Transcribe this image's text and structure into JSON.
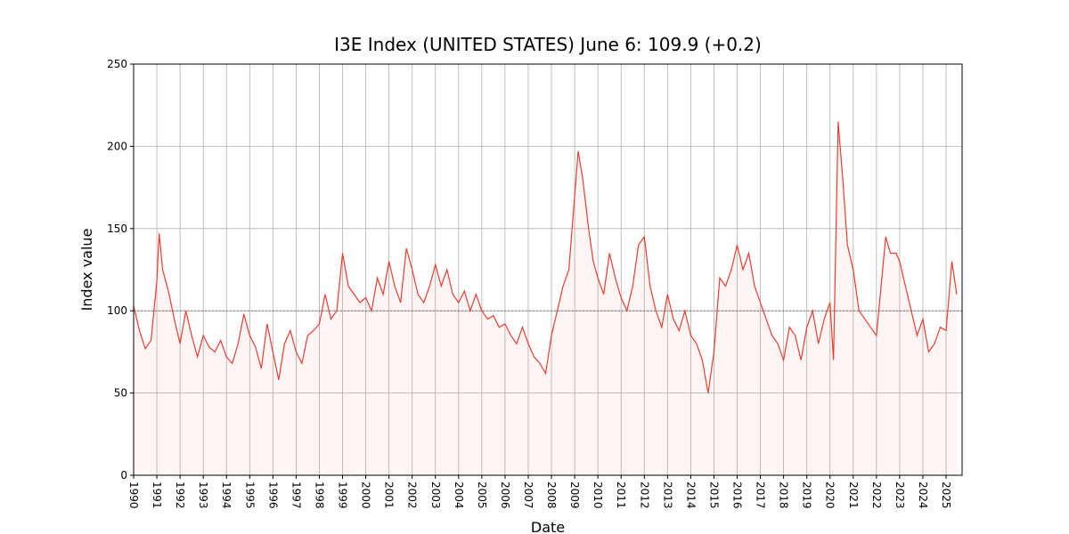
{
  "chart_data": {
    "type": "line",
    "title": "I3E Index (UNITED STATES) June 6: 109.9 (+0.2)",
    "x_label": "Date",
    "y_label": "Index value",
    "xlim": [
      1990,
      2025.69
    ],
    "ylim": [
      0,
      250
    ],
    "xticks": [
      1990,
      1991,
      1992,
      1993,
      1994,
      1995,
      1996,
      1997,
      1998,
      1999,
      2000,
      2001,
      2002,
      2003,
      2004,
      2005,
      2006,
      2007,
      2008,
      2009,
      2010,
      2011,
      2012,
      2013,
      2014,
      2015,
      2016,
      2017,
      2018,
      2019,
      2020,
      2021,
      2022,
      2023,
      2024,
      2025
    ],
    "yticks": [
      0,
      50,
      100,
      150,
      200,
      250
    ],
    "grid": true,
    "reference_line": 100,
    "series": [
      {
        "color": "#f03c2e",
        "x": [
          1990.0,
          1990.25,
          1990.5,
          1990.75,
          1991.0,
          1991.1,
          1991.25,
          1991.5,
          1991.75,
          1992.0,
          1992.25,
          1992.5,
          1992.75,
          1993.0,
          1993.25,
          1993.5,
          1993.75,
          1994.0,
          1994.25,
          1994.5,
          1994.75,
          1995.0,
          1995.25,
          1995.5,
          1995.75,
          1996.0,
          1996.25,
          1996.5,
          1996.75,
          1997.0,
          1997.25,
          1997.5,
          1997.75,
          1998.0,
          1998.25,
          1998.5,
          1998.75,
          1999.0,
          1999.25,
          1999.5,
          1999.75,
          2000.0,
          2000.25,
          2000.5,
          2000.75,
          2001.0,
          2001.25,
          2001.5,
          2001.75,
          2002.0,
          2002.25,
          2002.5,
          2002.75,
          2003.0,
          2003.25,
          2003.5,
          2003.75,
          2004.0,
          2004.25,
          2004.5,
          2004.75,
          2005.0,
          2005.25,
          2005.5,
          2005.75,
          2006.0,
          2006.25,
          2006.5,
          2006.75,
          2007.0,
          2007.25,
          2007.5,
          2007.75,
          2008.0,
          2008.25,
          2008.5,
          2008.75,
          2009.0,
          2009.15,
          2009.35,
          2009.6,
          2009.8,
          2010.0,
          2010.25,
          2010.5,
          2010.75,
          2011.0,
          2011.25,
          2011.5,
          2011.75,
          2012.0,
          2012.25,
          2012.5,
          2012.75,
          2013.0,
          2013.25,
          2013.5,
          2013.75,
          2014.0,
          2014.25,
          2014.5,
          2014.75,
          2015.0,
          2015.25,
          2015.5,
          2015.75,
          2016.0,
          2016.25,
          2016.5,
          2016.75,
          2017.0,
          2017.25,
          2017.5,
          2017.75,
          2018.0,
          2018.25,
          2018.5,
          2018.75,
          2019.0,
          2019.25,
          2019.5,
          2019.75,
          2020.0,
          2020.15,
          2020.35,
          2020.55,
          2020.75,
          2021.0,
          2021.25,
          2021.5,
          2021.75,
          2022.0,
          2022.2,
          2022.4,
          2022.6,
          2022.85,
          2023.0,
          2023.25,
          2023.5,
          2023.75,
          2024.0,
          2024.25,
          2024.5,
          2024.75,
          2025.0,
          2025.25,
          2025.46
        ],
        "values": [
          103,
          88,
          77,
          82,
          118,
          147,
          125,
          112,
          95,
          80,
          100,
          85,
          72,
          85,
          78,
          75,
          82,
          72,
          68,
          80,
          98,
          85,
          78,
          65,
          92,
          75,
          58,
          80,
          88,
          75,
          68,
          85,
          88,
          92,
          110,
          95,
          100,
          135,
          115,
          110,
          105,
          108,
          100,
          120,
          110,
          130,
          115,
          105,
          138,
          125,
          110,
          105,
          115,
          128,
          115,
          125,
          110,
          105,
          112,
          100,
          110,
          100,
          95,
          97,
          90,
          92,
          85,
          80,
          90,
          80,
          72,
          68,
          62,
          85,
          100,
          115,
          125,
          170,
          197,
          180,
          150,
          130,
          120,
          110,
          135,
          120,
          108,
          100,
          115,
          140,
          145,
          115,
          100,
          90,
          110,
          95,
          88,
          100,
          85,
          80,
          70,
          50,
          75,
          120,
          115,
          125,
          140,
          125,
          135,
          115,
          105,
          95,
          85,
          80,
          70,
          90,
          85,
          70,
          90,
          100,
          80,
          95,
          105,
          70,
          215,
          180,
          140,
          125,
          100,
          95,
          90,
          85,
          115,
          145,
          135,
          135,
          130,
          115,
          100,
          85,
          95,
          75,
          80,
          90,
          88,
          130,
          109.9
        ]
      }
    ]
  }
}
